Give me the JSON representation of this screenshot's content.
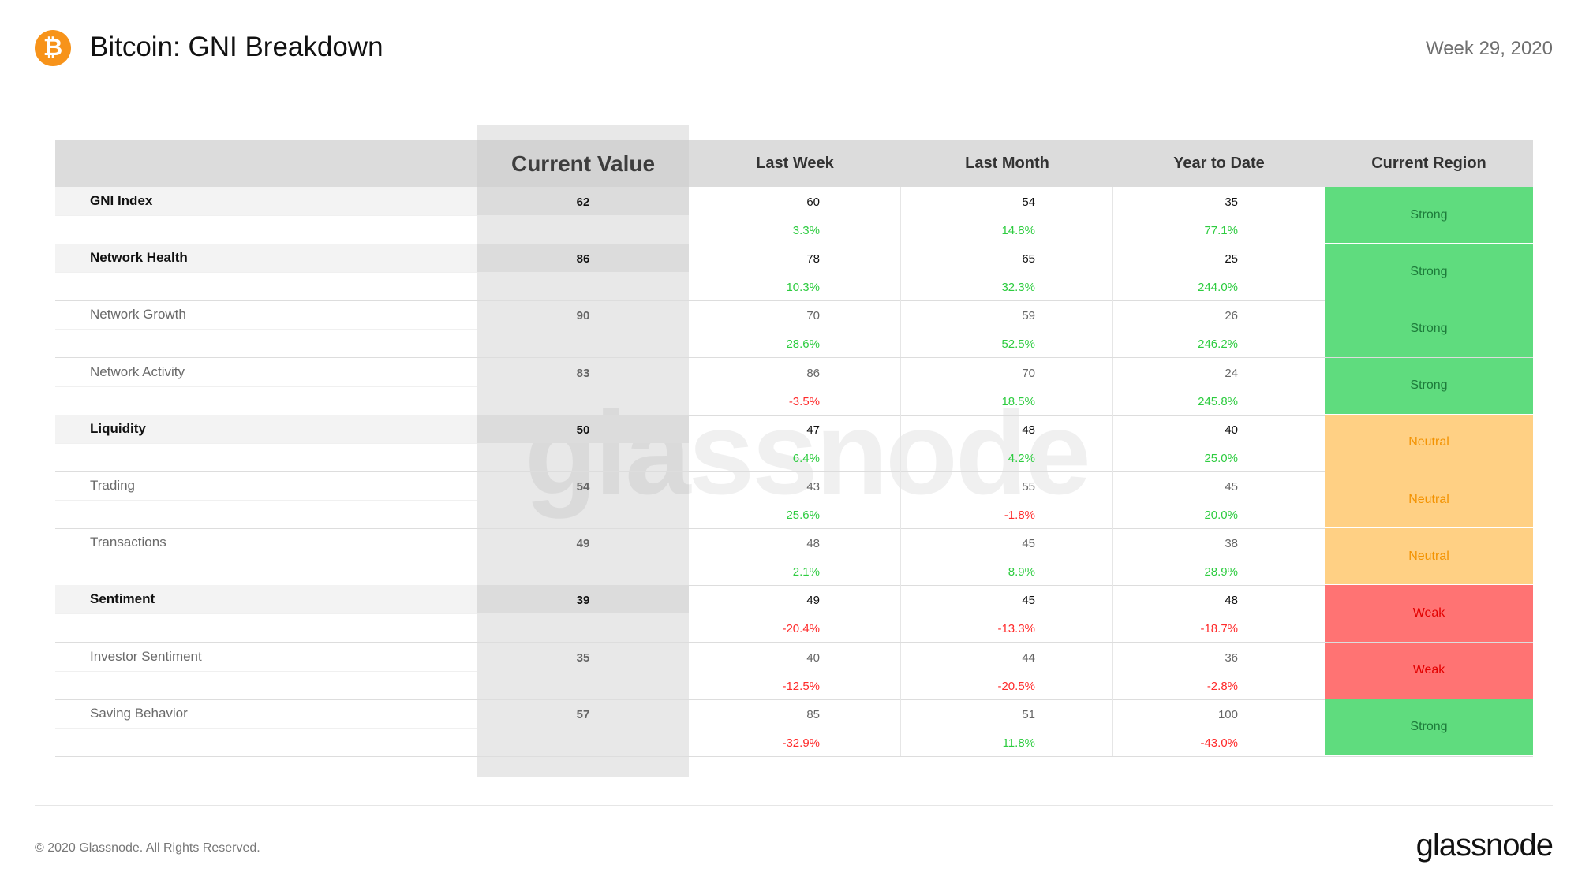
{
  "header": {
    "logo_glyph": "₿",
    "title": "Bitcoin: GNI Breakdown",
    "week": "Week 29, 2020"
  },
  "table": {
    "columns": {
      "metric": "",
      "current_value": "Current Value",
      "last_week": "Last Week",
      "last_month": "Last Month",
      "year_to_date": "Year to Date",
      "current_region": "Current Region"
    },
    "rows": [
      {
        "name": "GNI Index",
        "level": "main",
        "current": "62",
        "last_week": "60",
        "last_week_pct": "3.3%",
        "last_month": "54",
        "last_month_pct": "14.8%",
        "ytd": "35",
        "ytd_pct": "77.1%",
        "region": "Strong"
      },
      {
        "name": "Network Health",
        "level": "main",
        "current": "86",
        "last_week": "78",
        "last_week_pct": "10.3%",
        "last_month": "65",
        "last_month_pct": "32.3%",
        "ytd": "25",
        "ytd_pct": "244.0%",
        "region": "Strong"
      },
      {
        "name": "Network Growth",
        "level": "child",
        "current": "90",
        "last_week": "70",
        "last_week_pct": "28.6%",
        "last_month": "59",
        "last_month_pct": "52.5%",
        "ytd": "26",
        "ytd_pct": "246.2%",
        "region": "Strong"
      },
      {
        "name": "Network Activity",
        "level": "child",
        "current": "83",
        "last_week": "86",
        "last_week_pct": "-3.5%",
        "last_month": "70",
        "last_month_pct": "18.5%",
        "ytd": "24",
        "ytd_pct": "245.8%",
        "region": "Strong"
      },
      {
        "name": "Liquidity",
        "level": "main",
        "current": "50",
        "last_week": "47",
        "last_week_pct": "6.4%",
        "last_month": "48",
        "last_month_pct": "4.2%",
        "ytd": "40",
        "ytd_pct": "25.0%",
        "region": "Neutral"
      },
      {
        "name": "Trading",
        "level": "child",
        "current": "54",
        "last_week": "43",
        "last_week_pct": "25.6%",
        "last_month": "55",
        "last_month_pct": "-1.8%",
        "ytd": "45",
        "ytd_pct": "20.0%",
        "region": "Neutral"
      },
      {
        "name": "Transactions",
        "level": "child",
        "current": "49",
        "last_week": "48",
        "last_week_pct": "2.1%",
        "last_month": "45",
        "last_month_pct": "8.9%",
        "ytd": "38",
        "ytd_pct": "28.9%",
        "region": "Neutral"
      },
      {
        "name": "Sentiment",
        "level": "main",
        "current": "39",
        "last_week": "49",
        "last_week_pct": "-20.4%",
        "last_month": "45",
        "last_month_pct": "-13.3%",
        "ytd": "48",
        "ytd_pct": "-18.7%",
        "region": "Weak"
      },
      {
        "name": "Investor Sentiment",
        "level": "child",
        "current": "35",
        "last_week": "40",
        "last_week_pct": "-12.5%",
        "last_month": "44",
        "last_month_pct": "-20.5%",
        "ytd": "36",
        "ytd_pct": "-2.8%",
        "region": "Weak"
      },
      {
        "name": "Saving Behavior",
        "level": "child",
        "current": "57",
        "last_week": "85",
        "last_week_pct": "-32.9%",
        "last_month": "51",
        "last_month_pct": "11.8%",
        "ytd": "100",
        "ytd_pct": "-43.0%",
        "region": "Strong"
      }
    ],
    "region_colors": {
      "Strong": "#5fdc7e",
      "Neutral": "#ffd084",
      "Weak": "#ff7373"
    },
    "positive_color": "#2ecc40",
    "negative_color": "#ff2b2b"
  },
  "watermark": "glassnode",
  "footer": {
    "copyright": "© 2020 Glassnode. All Rights Reserved.",
    "brand": "glassnode"
  }
}
